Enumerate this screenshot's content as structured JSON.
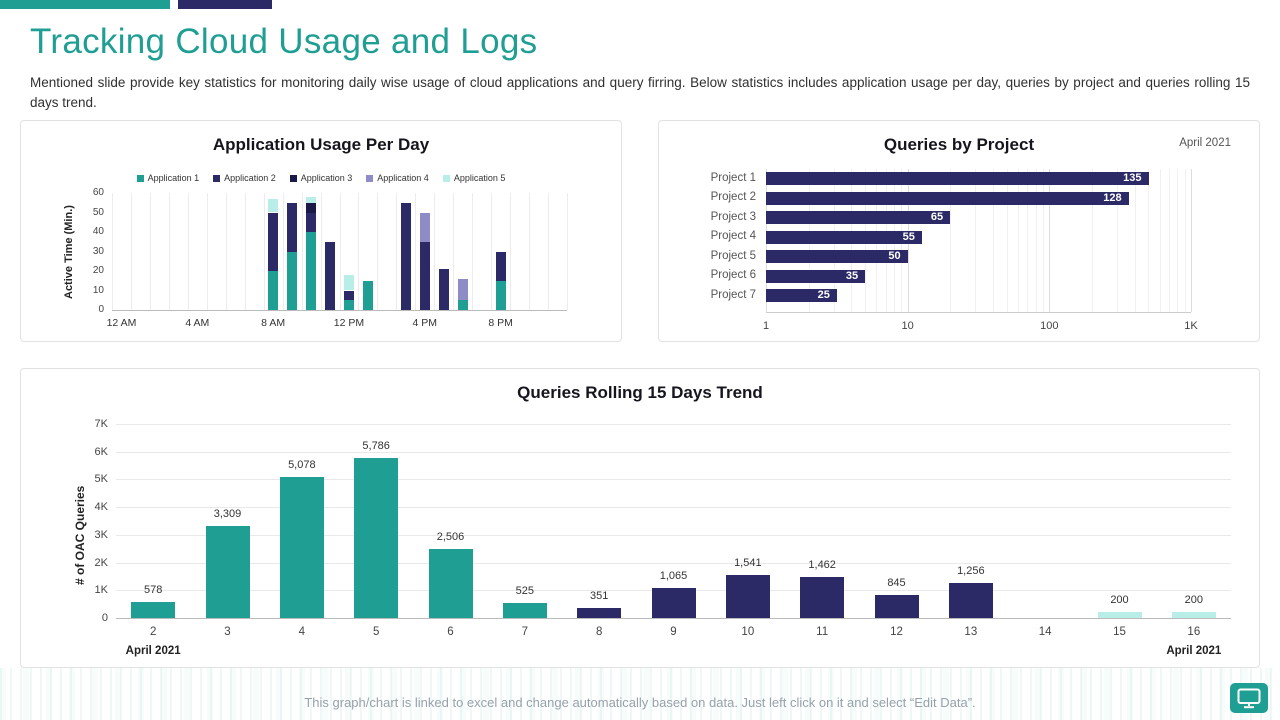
{
  "page": {
    "title": "Tracking Cloud Usage and Logs",
    "description": "Mentioned slide provide key statistics for monitoring daily wise usage of cloud applications and query firring. Below statistics includes application usage per day, queries by project and queries rolling 15 days trend.",
    "footer": "This graph/chart is linked to excel and change automatically based on data. Just left click on it and select “Edit Data”."
  },
  "colors": {
    "accent_teal": "#1f9e93",
    "accent_navy": "#2b2a66",
    "dark_navy": "#1a1947",
    "purple": "#8d8cc6",
    "light_cyan": "#b9eee8",
    "grid_light": "#ececec",
    "axis_gray": "#bbbbbb"
  },
  "chart_data": [
    {
      "id": "application-usage-per-day",
      "type": "bar",
      "stacked": true,
      "title": "Application Usage Per Day",
      "ylabel": "Active  Time (Min.)",
      "ylim": [
        0,
        60
      ],
      "yticks": [
        0,
        10,
        20,
        30,
        40,
        50,
        60
      ],
      "xticks": [
        {
          "hour": 0,
          "label": "12 AM"
        },
        {
          "hour": 4,
          "label": "4 AM"
        },
        {
          "hour": 8,
          "label": "8 AM"
        },
        {
          "hour": 12,
          "label": "12 PM"
        },
        {
          "hour": 16,
          "label": "4 PM"
        },
        {
          "hour": 20,
          "label": "8 PM"
        }
      ],
      "legend": [
        "Application 1",
        "Application 2",
        "Application 3",
        "Application 4",
        "Application 5"
      ],
      "series_colors": [
        "#1f9e93",
        "#2b2a66",
        "#1a1947",
        "#8d8cc6",
        "#b9eee8"
      ],
      "hours_span": 24,
      "bars": [
        {
          "hour": 8,
          "values": [
            20,
            30,
            0,
            0,
            7
          ]
        },
        {
          "hour": 9,
          "values": [
            30,
            25,
            0,
            0,
            0
          ]
        },
        {
          "hour": 10,
          "values": [
            40,
            10,
            5,
            0,
            3
          ]
        },
        {
          "hour": 11,
          "values": [
            0,
            35,
            0,
            0,
            0
          ]
        },
        {
          "hour": 12,
          "values": [
            5,
            5,
            0,
            0,
            8
          ]
        },
        {
          "hour": 13,
          "values": [
            15,
            0,
            0,
            0,
            0
          ]
        },
        {
          "hour": 15,
          "values": [
            0,
            55,
            0,
            0,
            0
          ]
        },
        {
          "hour": 16,
          "values": [
            0,
            35,
            0,
            15,
            0
          ]
        },
        {
          "hour": 17,
          "values": [
            0,
            21,
            0,
            0,
            0
          ]
        },
        {
          "hour": 18,
          "values": [
            5,
            0,
            0,
            11,
            0
          ]
        },
        {
          "hour": 20,
          "values": [
            15,
            15,
            0,
            0,
            0
          ]
        }
      ]
    },
    {
      "id": "queries-by-project",
      "type": "hbar",
      "title": "Queries by Project",
      "date_label": "April 2021",
      "categories": [
        "Project 1",
        "Project 2",
        "Project 3",
        "Project 4",
        "Project 5",
        "Project 6",
        "Project 7"
      ],
      "values": [
        135,
        128,
        65,
        55,
        50,
        35,
        25
      ],
      "xticks": [
        "1",
        "10",
        "100",
        "1K"
      ],
      "xmax": 150,
      "bar_color": "#2b2a66"
    },
    {
      "id": "queries-rolling-15-days-trend",
      "type": "bar",
      "title": "Queries Rolling 15 Days Trend",
      "ylabel": "# of OAC Queries",
      "ymax": 7000,
      "yticks": [
        "0",
        "1K",
        "2K",
        "3K",
        "4K",
        "5K",
        "6K",
        "7K"
      ],
      "categories": [
        "2",
        "3",
        "4",
        "5",
        "6",
        "7",
        "8",
        "9",
        "10",
        "11",
        "12",
        "13",
        "14",
        "15",
        "16"
      ],
      "values": [
        578,
        3309,
        5078,
        5786,
        2506,
        525,
        351,
        1065,
        1541,
        1462,
        845,
        1256,
        null,
        200,
        200
      ],
      "bar_colors": [
        "#1f9e93",
        "#1f9e93",
        "#1f9e93",
        "#1f9e93",
        "#1f9e93",
        "#1f9e93",
        "#2b2a66",
        "#2b2a66",
        "#2b2a66",
        "#2b2a66",
        "#2b2a66",
        "#2b2a66",
        "#2b2a66",
        "#b9eee8",
        "#b9eee8"
      ],
      "xlabel_left": "April 2021",
      "xlabel_right": "April 2021"
    }
  ]
}
